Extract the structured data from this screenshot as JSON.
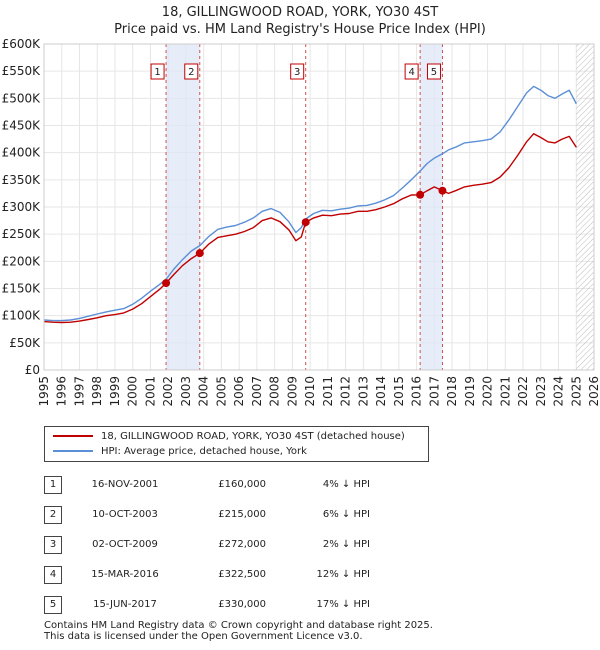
{
  "title_line1": "18, GILLINGWOOD ROAD, YORK, YO30 4ST",
  "title_line2": "Price paid vs. HM Land Registry's House Price Index (HPI)",
  "chart_data": {
    "type": "line",
    "title": "18, GILLINGWOOD ROAD, YORK, YO30 4ST — Price paid vs. HM Land Registry's House Price Index (HPI)",
    "xlim": [
      1995,
      2026
    ],
    "ylim": [
      0,
      600000
    ],
    "x_ticks": [
      "1995",
      "1996",
      "1997",
      "1998",
      "1999",
      "2000",
      "2001",
      "2002",
      "2003",
      "2004",
      "2005",
      "2006",
      "2007",
      "2008",
      "2009",
      "2010",
      "2011",
      "2012",
      "2013",
      "2014",
      "2015",
      "2016",
      "2017",
      "2018",
      "2019",
      "2020",
      "2021",
      "2022",
      "2023",
      "2024",
      "2025",
      "2026"
    ],
    "y_ticks": [
      {
        "v": 0,
        "label": "£0"
      },
      {
        "v": 50000,
        "label": "£50K"
      },
      {
        "v": 100000,
        "label": "£100K"
      },
      {
        "v": 150000,
        "label": "£150K"
      },
      {
        "v": 200000,
        "label": "£200K"
      },
      {
        "v": 250000,
        "label": "£250K"
      },
      {
        "v": 300000,
        "label": "£300K"
      },
      {
        "v": 350000,
        "label": "£350K"
      },
      {
        "v": 400000,
        "label": "£400K"
      },
      {
        "v": 450000,
        "label": "£450K"
      },
      {
        "v": 500000,
        "label": "£500K"
      },
      {
        "v": 550000,
        "label": "£550K"
      },
      {
        "v": 600000,
        "label": "£600K"
      }
    ],
    "hatch_from": 2025.0,
    "series": [
      {
        "name": "18, GILLINGWOOD ROAD, YORK, YO30 4ST (detached house)",
        "color": "#c00000",
        "points": [
          [
            1995.0,
            89000
          ],
          [
            1995.5,
            88000
          ],
          [
            1996.0,
            87500
          ],
          [
            1996.5,
            88000
          ],
          [
            1997.0,
            90000
          ],
          [
            1997.5,
            93000
          ],
          [
            1998.0,
            96000
          ],
          [
            1998.5,
            100000
          ],
          [
            1999.0,
            102000
          ],
          [
            1999.5,
            105000
          ],
          [
            2000.0,
            112000
          ],
          [
            2000.5,
            122000
          ],
          [
            2001.0,
            135000
          ],
          [
            2001.5,
            148000
          ],
          [
            2001.88,
            160000
          ],
          [
            2002.3,
            175000
          ],
          [
            2002.8,
            192000
          ],
          [
            2003.3,
            205000
          ],
          [
            2003.78,
            215000
          ],
          [
            2004.3,
            232000
          ],
          [
            2004.8,
            244000
          ],
          [
            2005.3,
            247000
          ],
          [
            2005.8,
            250000
          ],
          [
            2006.3,
            255000
          ],
          [
            2006.8,
            262000
          ],
          [
            2007.3,
            275000
          ],
          [
            2007.8,
            280000
          ],
          [
            2008.3,
            273000
          ],
          [
            2008.8,
            258000
          ],
          [
            2009.2,
            238000
          ],
          [
            2009.5,
            245000
          ],
          [
            2009.75,
            272000
          ],
          [
            2010.2,
            280000
          ],
          [
            2010.7,
            285000
          ],
          [
            2011.2,
            284000
          ],
          [
            2011.7,
            287000
          ],
          [
            2012.2,
            288000
          ],
          [
            2012.7,
            292000
          ],
          [
            2013.2,
            292000
          ],
          [
            2013.7,
            295000
          ],
          [
            2014.2,
            300000
          ],
          [
            2014.7,
            306000
          ],
          [
            2015.2,
            315000
          ],
          [
            2015.7,
            322000
          ],
          [
            2016.2,
            322500
          ],
          [
            2016.6,
            330000
          ],
          [
            2017.0,
            337000
          ],
          [
            2017.46,
            330000
          ],
          [
            2017.8,
            325000
          ],
          [
            2018.2,
            330000
          ],
          [
            2018.7,
            337000
          ],
          [
            2019.2,
            340000
          ],
          [
            2019.7,
            342000
          ],
          [
            2020.2,
            345000
          ],
          [
            2020.7,
            355000
          ],
          [
            2021.2,
            372000
          ],
          [
            2021.7,
            395000
          ],
          [
            2022.2,
            420000
          ],
          [
            2022.6,
            435000
          ],
          [
            2023.0,
            428000
          ],
          [
            2023.4,
            420000
          ],
          [
            2023.8,
            418000
          ],
          [
            2024.2,
            425000
          ],
          [
            2024.6,
            430000
          ],
          [
            2025.0,
            410000
          ]
        ]
      },
      {
        "name": "HPI: Average price, detached house, York",
        "color": "#5b8fd6",
        "points": [
          [
            1995.0,
            92000
          ],
          [
            1995.5,
            91000
          ],
          [
            1996.0,
            91000
          ],
          [
            1996.5,
            92000
          ],
          [
            1997.0,
            95000
          ],
          [
            1997.5,
            99000
          ],
          [
            1998.0,
            103000
          ],
          [
            1998.5,
            107000
          ],
          [
            1999.0,
            110000
          ],
          [
            1999.5,
            113000
          ],
          [
            2000.0,
            121000
          ],
          [
            2000.5,
            132000
          ],
          [
            2001.0,
            145000
          ],
          [
            2001.5,
            157000
          ],
          [
            2001.88,
            167000
          ],
          [
            2002.3,
            185000
          ],
          [
            2002.8,
            203000
          ],
          [
            2003.3,
            219000
          ],
          [
            2003.78,
            229000
          ],
          [
            2004.3,
            246000
          ],
          [
            2004.8,
            259000
          ],
          [
            2005.3,
            263000
          ],
          [
            2005.8,
            266000
          ],
          [
            2006.3,
            272000
          ],
          [
            2006.8,
            280000
          ],
          [
            2007.3,
            292000
          ],
          [
            2007.8,
            297000
          ],
          [
            2008.3,
            290000
          ],
          [
            2008.8,
            273000
          ],
          [
            2009.2,
            253000
          ],
          [
            2009.5,
            262000
          ],
          [
            2009.75,
            278000
          ],
          [
            2010.2,
            288000
          ],
          [
            2010.7,
            294000
          ],
          [
            2011.2,
            293000
          ],
          [
            2011.7,
            296000
          ],
          [
            2012.2,
            298000
          ],
          [
            2012.7,
            302000
          ],
          [
            2013.2,
            303000
          ],
          [
            2013.7,
            307000
          ],
          [
            2014.2,
            313000
          ],
          [
            2014.7,
            321000
          ],
          [
            2015.2,
            335000
          ],
          [
            2015.7,
            350000
          ],
          [
            2016.2,
            366000
          ],
          [
            2016.6,
            380000
          ],
          [
            2017.0,
            390000
          ],
          [
            2017.46,
            398000
          ],
          [
            2017.8,
            405000
          ],
          [
            2018.2,
            410000
          ],
          [
            2018.7,
            418000
          ],
          [
            2019.2,
            420000
          ],
          [
            2019.7,
            422000
          ],
          [
            2020.2,
            425000
          ],
          [
            2020.7,
            438000
          ],
          [
            2021.2,
            460000
          ],
          [
            2021.7,
            485000
          ],
          [
            2022.2,
            510000
          ],
          [
            2022.6,
            522000
          ],
          [
            2023.0,
            515000
          ],
          [
            2023.4,
            505000
          ],
          [
            2023.8,
            500000
          ],
          [
            2024.2,
            508000
          ],
          [
            2024.6,
            515000
          ],
          [
            2025.0,
            490000
          ]
        ]
      }
    ],
    "markers": [
      {
        "label": "1",
        "x": 2001.88,
        "y": 160000
      },
      {
        "label": "2",
        "x": 2003.78,
        "y": 215000
      },
      {
        "label": "3",
        "x": 2009.75,
        "y": 272000
      },
      {
        "label": "4",
        "x": 2016.2,
        "y": 322500
      },
      {
        "label": "5",
        "x": 2017.46,
        "y": 330000
      }
    ],
    "shaded_spans": [
      [
        2001.88,
        2003.78
      ],
      [
        2016.2,
        2017.46
      ]
    ]
  },
  "legend": {
    "items": [
      {
        "label": "18, GILLINGWOOD ROAD, YORK, YO30 4ST (detached house)",
        "color": "#c00000"
      },
      {
        "label": "HPI: Average price, detached house, York",
        "color": "#5b8fd6"
      }
    ]
  },
  "transactions": [
    {
      "n": "1",
      "date": "16-NOV-2001",
      "price": "£160,000",
      "hpi": "4% ↓ HPI"
    },
    {
      "n": "2",
      "date": "10-OCT-2003",
      "price": "£215,000",
      "hpi": "6% ↓ HPI"
    },
    {
      "n": "3",
      "date": "02-OCT-2009",
      "price": "£272,000",
      "hpi": "2% ↓ HPI"
    },
    {
      "n": "4",
      "date": "15-MAR-2016",
      "price": "£322,500",
      "hpi": "12% ↓ HPI"
    },
    {
      "n": "5",
      "date": "15-JUN-2017",
      "price": "£330,000",
      "hpi": "17% ↓ HPI"
    }
  ],
  "footer_line1": "Contains HM Land Registry data © Crown copyright and database right 2025.",
  "footer_line2": "This data is licensed under the Open Government Licence v3.0."
}
